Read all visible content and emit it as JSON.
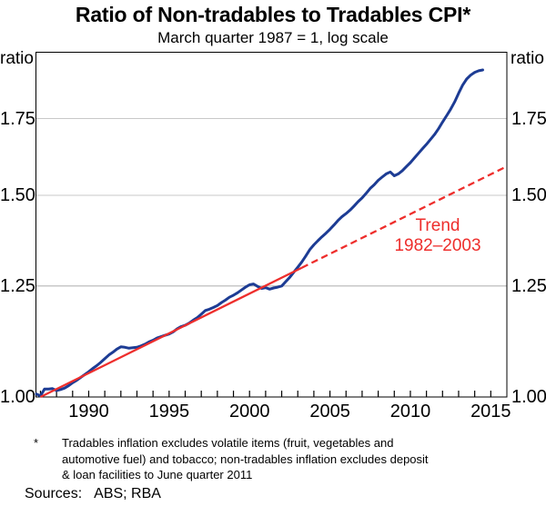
{
  "chart_data": {
    "type": "line",
    "title": "Ratio of Non-tradables to Tradables CPI*",
    "subtitle": "March quarter 1987 = 1, log scale",
    "y_unit": "ratio",
    "y_scale": "log",
    "grid": "horizontal",
    "x_range": [
      1986.72,
      2016.0
    ],
    "y_range": [
      1.0,
      2.0
    ],
    "y_ticks": [
      {
        "value": 1.0,
        "label": "1.00"
      },
      {
        "value": 1.25,
        "label": "1.25"
      },
      {
        "value": 1.5,
        "label": "1.50"
      },
      {
        "value": 1.75,
        "label": "1.75"
      }
    ],
    "x_ticks": {
      "minor_start": 1987,
      "minor_end": 2015,
      "minor_step": 1,
      "labels": [
        {
          "value": 1990,
          "label": "1990"
        },
        {
          "value": 1995,
          "label": "1995"
        },
        {
          "value": 2000,
          "label": "2000"
        },
        {
          "value": 2005,
          "label": "2005"
        },
        {
          "value": 2010,
          "label": "2010"
        },
        {
          "value": 2015,
          "label": "2015"
        }
      ]
    },
    "colors": {
      "ratio_line": "#1d3c94",
      "trend_line": "#ee2e2c",
      "gridline": "#c8c8c8",
      "axis": "#000000"
    },
    "series": [
      {
        "name": "ratio-non-tradables-to-tradables-cpi",
        "color": "#1d3c94",
        "style": "solid",
        "points": [
          [
            1986.75,
            1.006
          ],
          [
            1987.0,
            1.002
          ],
          [
            1987.25,
            1.016
          ],
          [
            1987.5,
            1.016
          ],
          [
            1987.75,
            1.017
          ],
          [
            1988.0,
            1.013
          ],
          [
            1988.25,
            1.015
          ],
          [
            1988.5,
            1.018
          ],
          [
            1988.75,
            1.023
          ],
          [
            1989.0,
            1.029
          ],
          [
            1989.25,
            1.034
          ],
          [
            1989.5,
            1.04
          ],
          [
            1989.75,
            1.046
          ],
          [
            1990.0,
            1.052
          ],
          [
            1990.25,
            1.059
          ],
          [
            1990.5,
            1.065
          ],
          [
            1990.75,
            1.072
          ],
          [
            1991.0,
            1.08
          ],
          [
            1991.25,
            1.088
          ],
          [
            1991.5,
            1.094
          ],
          [
            1991.75,
            1.101
          ],
          [
            1992.0,
            1.106
          ],
          [
            1992.25,
            1.105
          ],
          [
            1992.5,
            1.103
          ],
          [
            1992.75,
            1.104
          ],
          [
            1993.0,
            1.105
          ],
          [
            1993.25,
            1.108
          ],
          [
            1993.5,
            1.112
          ],
          [
            1993.75,
            1.117
          ],
          [
            1994.0,
            1.121
          ],
          [
            1994.25,
            1.126
          ],
          [
            1994.5,
            1.129
          ],
          [
            1994.75,
            1.132
          ],
          [
            1995.0,
            1.135
          ],
          [
            1995.25,
            1.14
          ],
          [
            1995.5,
            1.147
          ],
          [
            1995.75,
            1.152
          ],
          [
            1996.0,
            1.155
          ],
          [
            1996.25,
            1.16
          ],
          [
            1996.5,
            1.167
          ],
          [
            1996.75,
            1.173
          ],
          [
            1997.0,
            1.181
          ],
          [
            1997.25,
            1.19
          ],
          [
            1997.5,
            1.193
          ],
          [
            1997.75,
            1.197
          ],
          [
            1998.0,
            1.202
          ],
          [
            1998.25,
            1.209
          ],
          [
            1998.5,
            1.215
          ],
          [
            1998.75,
            1.222
          ],
          [
            1999.0,
            1.227
          ],
          [
            1999.25,
            1.233
          ],
          [
            1999.5,
            1.24
          ],
          [
            1999.75,
            1.247
          ],
          [
            2000.0,
            1.253
          ],
          [
            2000.25,
            1.255
          ],
          [
            2000.5,
            1.249
          ],
          [
            2000.75,
            1.244
          ],
          [
            2001.0,
            1.246
          ],
          [
            2001.25,
            1.242
          ],
          [
            2001.5,
            1.245
          ],
          [
            2001.75,
            1.247
          ],
          [
            2002.0,
            1.25
          ],
          [
            2002.25,
            1.261
          ],
          [
            2002.5,
            1.272
          ],
          [
            2002.75,
            1.285
          ],
          [
            2003.0,
            1.298
          ],
          [
            2003.25,
            1.312
          ],
          [
            2003.5,
            1.328
          ],
          [
            2003.75,
            1.345
          ],
          [
            2004.0,
            1.358
          ],
          [
            2004.25,
            1.369
          ],
          [
            2004.5,
            1.38
          ],
          [
            2004.75,
            1.39
          ],
          [
            2005.0,
            1.401
          ],
          [
            2005.25,
            1.413
          ],
          [
            2005.5,
            1.426
          ],
          [
            2005.75,
            1.437
          ],
          [
            2006.0,
            1.446
          ],
          [
            2006.25,
            1.456
          ],
          [
            2006.5,
            1.468
          ],
          [
            2006.75,
            1.481
          ],
          [
            2007.0,
            1.492
          ],
          [
            2007.25,
            1.506
          ],
          [
            2007.5,
            1.521
          ],
          [
            2007.75,
            1.532
          ],
          [
            2008.0,
            1.546
          ],
          [
            2008.25,
            1.556
          ],
          [
            2008.5,
            1.566
          ],
          [
            2008.75,
            1.572
          ],
          [
            2009.0,
            1.56
          ],
          [
            2009.25,
            1.566
          ],
          [
            2009.5,
            1.576
          ],
          [
            2009.75,
            1.589
          ],
          [
            2010.0,
            1.602
          ],
          [
            2010.25,
            1.617
          ],
          [
            2010.5,
            1.632
          ],
          [
            2010.75,
            1.647
          ],
          [
            2011.0,
            1.662
          ],
          [
            2011.25,
            1.678
          ],
          [
            2011.5,
            1.695
          ],
          [
            2011.75,
            1.715
          ],
          [
            2012.0,
            1.738
          ],
          [
            2012.25,
            1.76
          ],
          [
            2012.5,
            1.783
          ],
          [
            2012.75,
            1.81
          ],
          [
            2013.0,
            1.842
          ],
          [
            2013.25,
            1.872
          ],
          [
            2013.5,
            1.895
          ],
          [
            2013.75,
            1.91
          ],
          [
            2014.0,
            1.921
          ],
          [
            2014.25,
            1.927
          ],
          [
            2014.5,
            1.93
          ]
        ]
      },
      {
        "name": "trend-1982-2003",
        "color": "#ee2e2c",
        "style": "solid-then-dashed",
        "dashed_from_x": 2003.25,
        "points": [
          [
            1987.0,
            1.0
          ],
          [
            2016.0,
            1.59
          ]
        ]
      }
    ],
    "annotation": {
      "lines": [
        "Trend",
        "1982–2003"
      ],
      "color": "#ee2e2c"
    }
  },
  "footnote": {
    "marker": "*",
    "lines": [
      "Tradables inflation excludes volatile items (fruit, vegetables and",
      "automotive fuel) and tobacco; non-tradables inflation excludes deposit",
      "& loan facilities to June quarter 2011"
    ]
  },
  "sources": {
    "label": "Sources:",
    "value": "ABS; RBA"
  }
}
